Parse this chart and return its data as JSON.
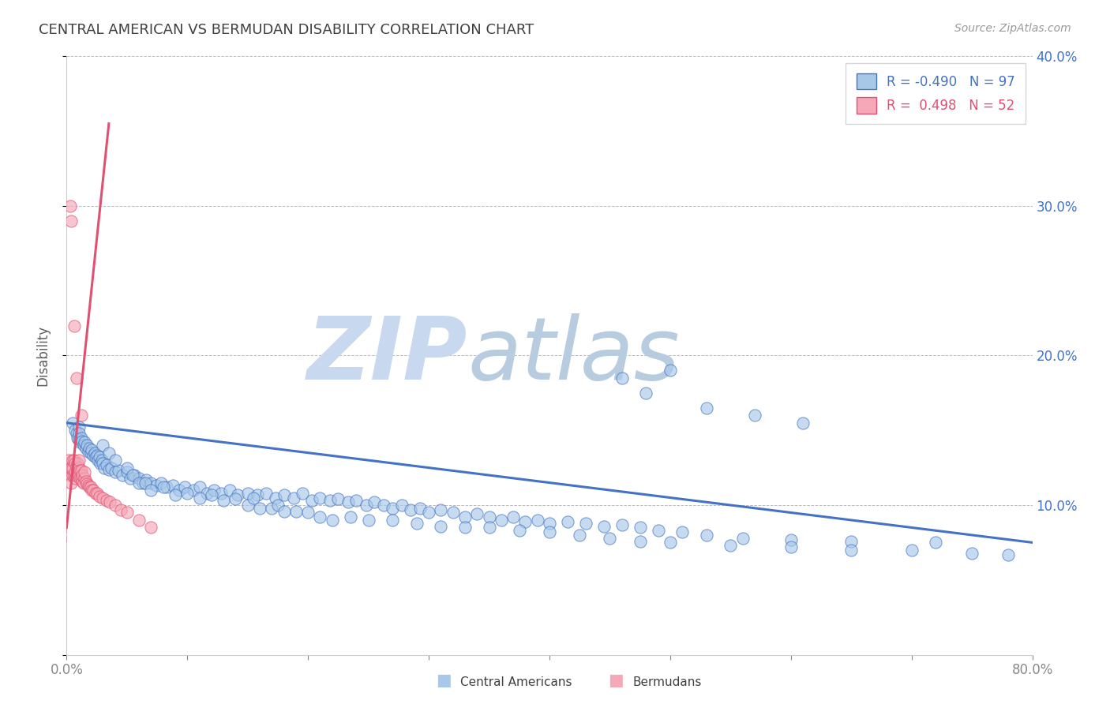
{
  "title": "CENTRAL AMERICAN VS BERMUDAN DISABILITY CORRELATION CHART",
  "source": "Source: ZipAtlas.com",
  "ylabel": "Disability",
  "xlabel": "",
  "xlim": [
    0.0,
    0.8
  ],
  "ylim": [
    0.0,
    0.4
  ],
  "xticks": [
    0.0,
    0.1,
    0.2,
    0.3,
    0.4,
    0.5,
    0.6,
    0.7,
    0.8
  ],
  "xticklabels": [
    "0.0%",
    "",
    "",
    "",
    "",
    "",
    "",
    "",
    "80.0%"
  ],
  "yticks": [
    0.0,
    0.1,
    0.2,
    0.3,
    0.4
  ],
  "yticklabels": [
    "",
    "10.0%",
    "20.0%",
    "30.0%",
    "40.0%"
  ],
  "legend_r1": "R = -0.490",
  "legend_n1": "N = 97",
  "legend_r2": "R =  0.498",
  "legend_n2": "N = 52",
  "blue_color": "#A8C8E8",
  "pink_color": "#F4A8B8",
  "line_blue": "#4472C4",
  "line_pink": "#E05070",
  "title_color": "#404040",
  "axis_label_color": "#4472C4",
  "blue_trend_x": [
    0.0,
    0.8
  ],
  "blue_trend_y": [
    0.155,
    0.075
  ],
  "pink_trend_x": [
    0.0,
    0.035
  ],
  "pink_trend_y": [
    0.085,
    0.355
  ],
  "blue_scatter_x": [
    0.005,
    0.007,
    0.008,
    0.009,
    0.01,
    0.01,
    0.01,
    0.011,
    0.012,
    0.013,
    0.014,
    0.015,
    0.016,
    0.017,
    0.018,
    0.019,
    0.02,
    0.021,
    0.022,
    0.023,
    0.024,
    0.025,
    0.026,
    0.027,
    0.028,
    0.029,
    0.03,
    0.031,
    0.033,
    0.035,
    0.037,
    0.04,
    0.043,
    0.046,
    0.05,
    0.053,
    0.056,
    0.06,
    0.063,
    0.066,
    0.07,
    0.074,
    0.078,
    0.083,
    0.088,
    0.093,
    0.098,
    0.105,
    0.11,
    0.116,
    0.122,
    0.128,
    0.135,
    0.142,
    0.15,
    0.158,
    0.165,
    0.173,
    0.18,
    0.188,
    0.195,
    0.203,
    0.21,
    0.218,
    0.225,
    0.233,
    0.24,
    0.248,
    0.255,
    0.263,
    0.27,
    0.278,
    0.285,
    0.293,
    0.3,
    0.31,
    0.32,
    0.33,
    0.34,
    0.35,
    0.36,
    0.37,
    0.38,
    0.39,
    0.4,
    0.415,
    0.43,
    0.445,
    0.46,
    0.475,
    0.49,
    0.51,
    0.53,
    0.56,
    0.6,
    0.65,
    0.72
  ],
  "blue_scatter_y": [
    0.155,
    0.15,
    0.148,
    0.145,
    0.152,
    0.148,
    0.144,
    0.142,
    0.145,
    0.143,
    0.14,
    0.142,
    0.138,
    0.14,
    0.136,
    0.138,
    0.135,
    0.137,
    0.133,
    0.135,
    0.132,
    0.133,
    0.13,
    0.132,
    0.128,
    0.13,
    0.128,
    0.125,
    0.127,
    0.124,
    0.125,
    0.122,
    0.123,
    0.12,
    0.122,
    0.118,
    0.12,
    0.118,
    0.115,
    0.117,
    0.115,
    0.113,
    0.115,
    0.112,
    0.113,
    0.11,
    0.112,
    0.11,
    0.112,
    0.108,
    0.11,
    0.108,
    0.11,
    0.107,
    0.108,
    0.107,
    0.108,
    0.105,
    0.107,
    0.105,
    0.108,
    0.103,
    0.105,
    0.103,
    0.104,
    0.102,
    0.103,
    0.1,
    0.102,
    0.1,
    0.098,
    0.1,
    0.097,
    0.098,
    0.095,
    0.097,
    0.095,
    0.092,
    0.094,
    0.092,
    0.09,
    0.092,
    0.089,
    0.09,
    0.088,
    0.089,
    0.088,
    0.086,
    0.087,
    0.085,
    0.083,
    0.082,
    0.08,
    0.078,
    0.077,
    0.076,
    0.075
  ],
  "blue_scatter_extra_x": [
    0.03,
    0.035,
    0.04,
    0.05,
    0.055,
    0.06,
    0.065,
    0.07,
    0.08,
    0.09,
    0.1,
    0.11,
    0.12,
    0.13,
    0.14,
    0.15,
    0.155,
    0.16,
    0.17,
    0.175,
    0.18,
    0.19,
    0.2,
    0.21,
    0.22,
    0.235,
    0.25,
    0.27,
    0.29,
    0.31,
    0.33,
    0.35,
    0.375,
    0.4,
    0.425,
    0.45,
    0.475,
    0.5,
    0.55,
    0.6,
    0.65,
    0.7,
    0.75,
    0.78,
    0.46,
    0.48,
    0.5,
    0.53,
    0.57,
    0.61
  ],
  "blue_scatter_extra_y": [
    0.14,
    0.135,
    0.13,
    0.125,
    0.12,
    0.115,
    0.115,
    0.11,
    0.112,
    0.107,
    0.108,
    0.105,
    0.107,
    0.103,
    0.104,
    0.1,
    0.105,
    0.098,
    0.098,
    0.1,
    0.096,
    0.096,
    0.095,
    0.092,
    0.09,
    0.092,
    0.09,
    0.09,
    0.088,
    0.086,
    0.085,
    0.085,
    0.083,
    0.082,
    0.08,
    0.078,
    0.076,
    0.075,
    0.073,
    0.072,
    0.07,
    0.07,
    0.068,
    0.067,
    0.185,
    0.175,
    0.19,
    0.165,
    0.16,
    0.155
  ],
  "pink_scatter_x": [
    0.002,
    0.003,
    0.003,
    0.004,
    0.004,
    0.005,
    0.005,
    0.005,
    0.006,
    0.006,
    0.007,
    0.007,
    0.007,
    0.008,
    0.008,
    0.009,
    0.009,
    0.01,
    0.01,
    0.01,
    0.011,
    0.011,
    0.012,
    0.012,
    0.013,
    0.013,
    0.014,
    0.015,
    0.015,
    0.016,
    0.017,
    0.018,
    0.019,
    0.02,
    0.021,
    0.022,
    0.024,
    0.025,
    0.027,
    0.03,
    0.033,
    0.036,
    0.04,
    0.045,
    0.05,
    0.06,
    0.07,
    0.012,
    0.008,
    0.006,
    0.004,
    0.003
  ],
  "pink_scatter_y": [
    0.13,
    0.12,
    0.125,
    0.115,
    0.125,
    0.12,
    0.125,
    0.13,
    0.12,
    0.13,
    0.118,
    0.122,
    0.128,
    0.12,
    0.126,
    0.122,
    0.128,
    0.12,
    0.125,
    0.13,
    0.118,
    0.123,
    0.118,
    0.123,
    0.116,
    0.12,
    0.115,
    0.118,
    0.122,
    0.116,
    0.114,
    0.113,
    0.112,
    0.112,
    0.11,
    0.11,
    0.108,
    0.108,
    0.106,
    0.105,
    0.103,
    0.102,
    0.1,
    0.097,
    0.095,
    0.09,
    0.085,
    0.16,
    0.185,
    0.22,
    0.29,
    0.3
  ]
}
